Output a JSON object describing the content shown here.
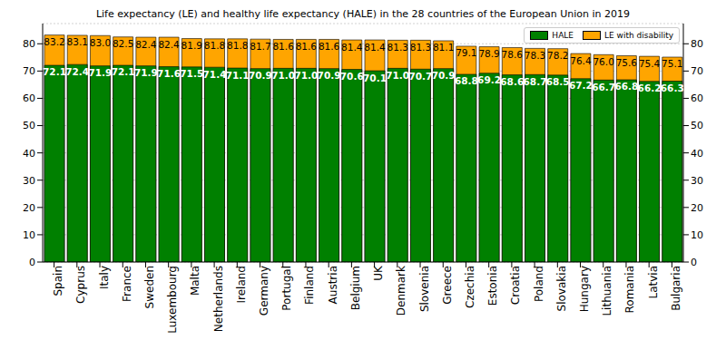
{
  "chart_data": {
    "type": "bar",
    "title": "Life expectancy (LE) and healthy life expectancy (HALE) in the 28 countries of the European Union in 2019",
    "categories": [
      "Spain",
      "Cyprus",
      "Italy",
      "France",
      "Sweden",
      "Luxembourg",
      "Malta",
      "Netherlands",
      "Ireland",
      "Germany",
      "Portugal",
      "Finland",
      "Austria",
      "Belgium",
      "UK",
      "Denmark",
      "Slovenia",
      "Greece",
      "Czechia",
      "Estonia",
      "Croatia",
      "Poland",
      "Slovakia",
      "Hungary",
      "Lithuania",
      "Romania",
      "Latvia",
      "Bulgaria"
    ],
    "series": [
      {
        "name": "HALE",
        "color": "#008000",
        "values": [
          72.1,
          72.4,
          71.9,
          72.1,
          71.9,
          71.6,
          71.5,
          71.4,
          71.1,
          70.9,
          71.0,
          71.0,
          70.9,
          70.6,
          70.1,
          71.0,
          70.7,
          70.9,
          68.8,
          69.2,
          68.6,
          68.7,
          68.5,
          67.2,
          66.7,
          66.8,
          66.2,
          66.3
        ],
        "value_labels": [
          "72.1",
          "72.4",
          "71.9",
          "72.1",
          "71.9",
          "71.6",
          "71.5",
          "71.4",
          "71.1",
          "70.9",
          "71.0",
          "71.0",
          "70.9",
          "70.6",
          "70.1",
          "71.0",
          "70.7",
          "70.9",
          "68.8",
          "69.2",
          "68.6",
          "68.7",
          "68.5",
          "67.2",
          "66.7",
          "66.8",
          "66.2",
          "66.3"
        ]
      },
      {
        "name": "LE with disability",
        "color": "#ffa500",
        "values": [
          83.2,
          83.1,
          83.0,
          82.5,
          82.4,
          82.4,
          81.9,
          81.8,
          81.8,
          81.7,
          81.6,
          81.6,
          81.6,
          81.4,
          81.4,
          81.3,
          81.3,
          81.1,
          79.1,
          78.9,
          78.6,
          78.3,
          78.2,
          76.4,
          76.0,
          75.6,
          75.4,
          75.1
        ],
        "value_labels": [
          "83.2",
          "83.1",
          "83.0",
          "82.5",
          "82.4",
          "82.4",
          "81.9",
          "81.8",
          "81.8",
          "81.7",
          "81.6",
          "81.6",
          "81.6",
          "81.4",
          "81.4",
          "81.3",
          "81.3",
          "81.1",
          "79.1",
          "78.9",
          "78.6",
          "78.3",
          "78.2",
          "76.4",
          "76.0",
          "75.6",
          "75.4",
          "75.1"
        ]
      }
    ],
    "ylim": [
      0,
      87.4
    ],
    "yticks": [
      0,
      10,
      20,
      30,
      40,
      50,
      60,
      70,
      80
    ],
    "y2lim": [
      0,
      87.4
    ],
    "y2ticks": [
      0,
      10,
      20,
      30,
      40,
      50,
      60,
      70,
      80
    ],
    "grid": true,
    "legend": "upper right",
    "data_labels": true
  }
}
